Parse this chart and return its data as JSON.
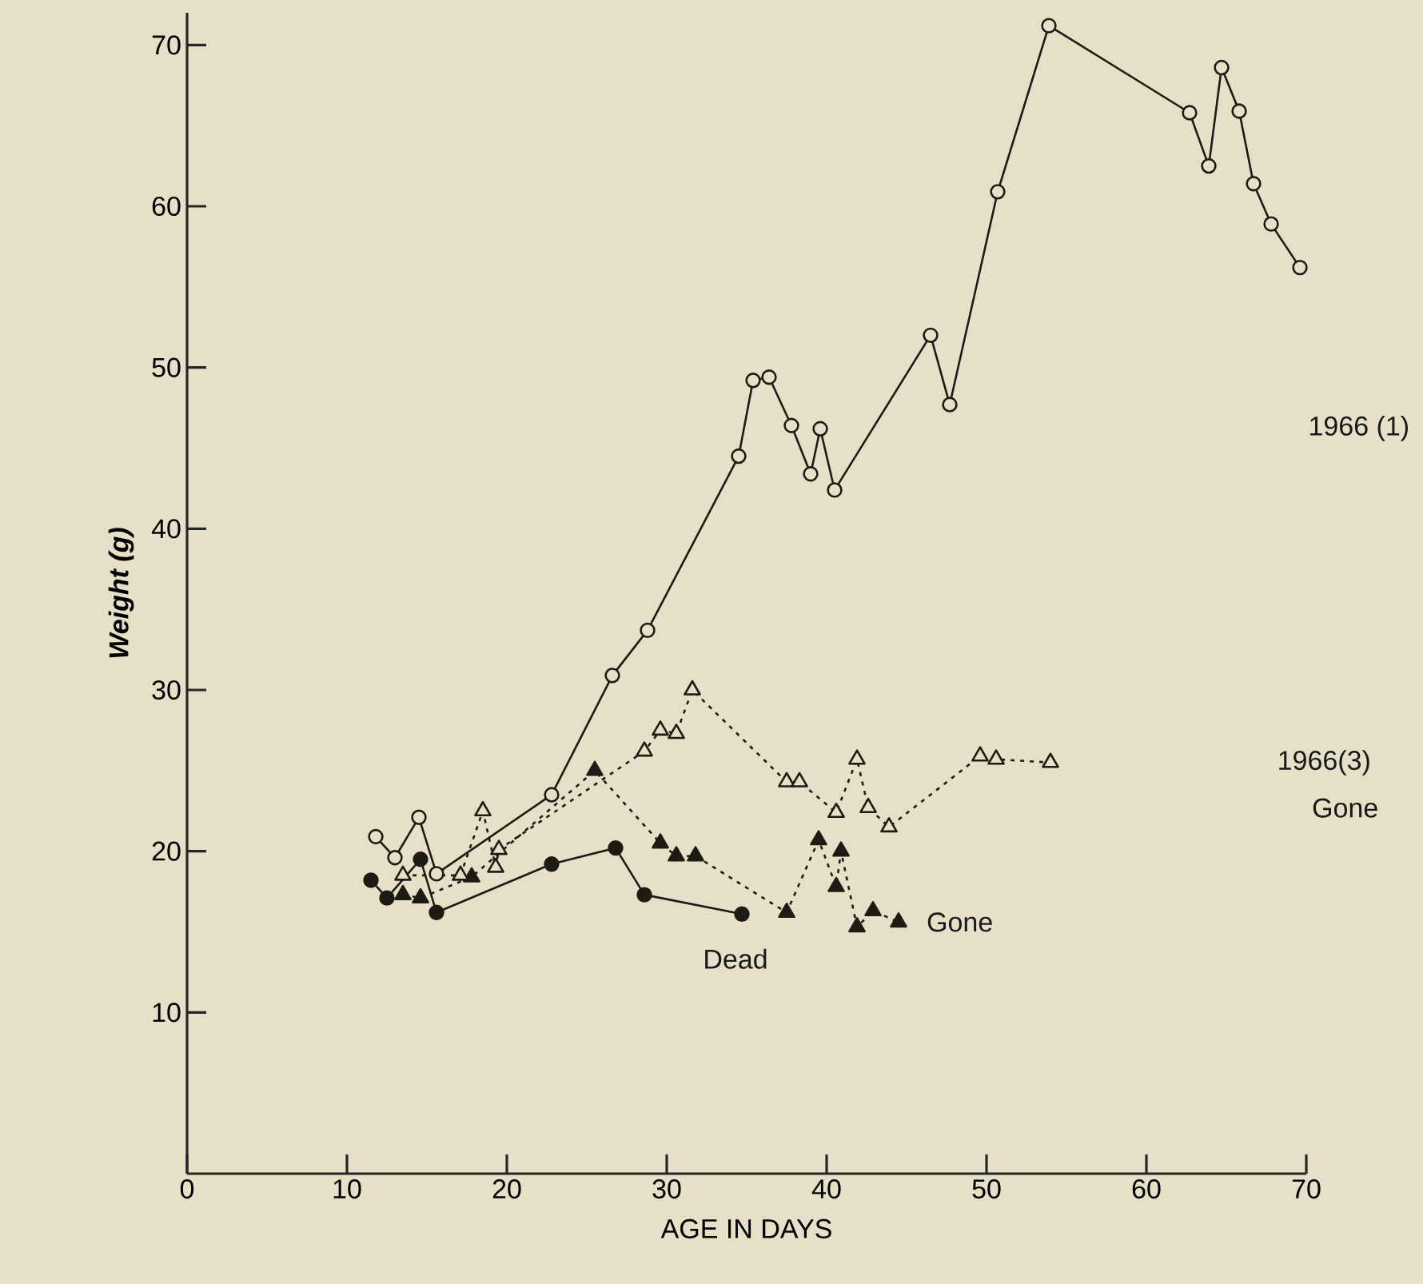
{
  "chart_data": {
    "type": "line",
    "xlabel": "AGE IN DAYS",
    "ylabel": "**Weight (g)**",
    "xlim": [
      0,
      70
    ],
    "ylim": [
      0,
      72
    ],
    "xticks": [
      0,
      10,
      20,
      30,
      40,
      50,
      60,
      70
    ],
    "yticks": [
      10,
      20,
      30,
      40,
      50,
      60,
      70
    ],
    "grid": false,
    "series": [
      {
        "color": "#1e1a14",
        "marker": "circle",
        "line_style": "solid",
        "x": [
          11.8,
          13,
          14.5,
          15.6,
          22.8,
          26.6,
          28.8,
          34.5,
          35.4,
          36.4,
          37.8,
          39,
          39.6,
          40.5,
          46.5,
          47.7,
          50.7,
          53.9,
          62.7,
          63.9,
          64.7,
          65.8,
          66.7,
          67.8,
          69.6
        ],
        "values": [
          20.9,
          19.6,
          22.1,
          18.6,
          23.5,
          30.9,
          33.7,
          44.5,
          49.2,
          49.4,
          46.4,
          43.4,
          46.2,
          42.4,
          52,
          47.7,
          60.9,
          71.2,
          65.8,
          62.5,
          68.6,
          65.9,
          61.4,
          58.9,
          56.2
        ]
      },
      {
        "color": "#1e1a14",
        "marker": "circle",
        "line_style": "solid",
        "x": [
          11.5,
          12.5,
          14.6,
          15.6,
          22.8,
          26.8,
          28.6,
          34.7
        ],
        "values": [
          18.2,
          17.1,
          19.5,
          16.2,
          19.2,
          20.2,
          17.3,
          16.1
        ]
      },
      {
        "color": "#1e1a14",
        "marker": "triangle",
        "line_style": "dotted",
        "x": [
          13.5,
          14.6,
          17.8,
          25.5,
          29.6,
          30.6,
          31.8,
          37.5,
          39.5,
          40.6,
          40.9,
          41.9,
          42.9,
          44.5
        ],
        "values": [
          17.3,
          17.1,
          18.4,
          25,
          20.5,
          19.7,
          19.7,
          16.2,
          20.7,
          17.8,
          20,
          15.3,
          16.3,
          15.6
        ]
      },
      {
        "color": "#1e1a14",
        "marker": "triangle",
        "line_style": "dotted",
        "x": [
          13.5,
          17.1,
          18.5,
          19.3,
          19.5,
          28.6,
          29.6,
          30.6,
          31.6,
          37.5,
          38.3,
          40.6,
          41.9,
          42.6,
          43.9,
          49.6,
          50.6,
          54
        ],
        "values": [
          18.5,
          18.5,
          22.5,
          19,
          20.1,
          26.2,
          27.5,
          27.3,
          30,
          24.3,
          24.3,
          22.4,
          25.7,
          22.7,
          21.5,
          25.9,
          25.7,
          25.5
        ]
      }
    ],
    "annotations": [
      "1966 (1)",
      "1966(3)",
      "Gone",
      {
        "text": "Gone",
        "x": 44.5,
        "y": 15.6
      },
      {
        "text": "Dead",
        "x": 34.7,
        "y": 16.1
      }
    ]
  }
}
